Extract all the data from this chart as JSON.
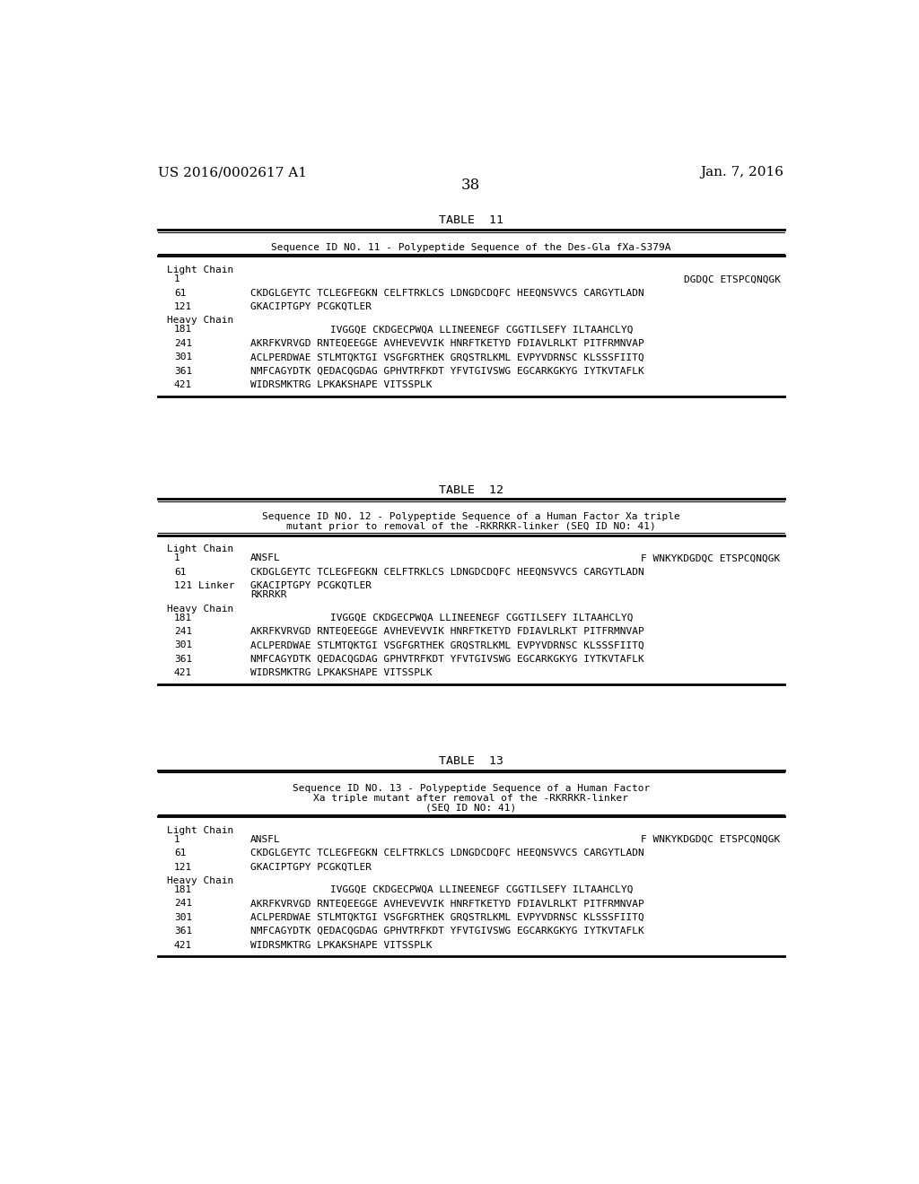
{
  "bg_color": "#ffffff",
  "text_color": "#000000",
  "page_header_left": "US 2016/0002617 A1",
  "page_header_right": "Jan. 7, 2016",
  "page_number": "38",
  "font_size_header": 11,
  "font_size_body": 8.5,
  "font_size_title": 9,
  "font_size_page": 11,
  "tables": [
    {
      "title": "TABLE  11",
      "subtitle_lines": [
        "Sequence ID NO. 11 - Polypeptide Sequence of the Des-Gla fXa-S379A"
      ],
      "rows": [
        {
          "type": "section",
          "text": "Light Chain"
        },
        {
          "type": "seq",
          "num": "1",
          "indent": "far_right",
          "seq": "DGDQC ETSPCQNQGK"
        },
        {
          "type": "seq",
          "num": "61",
          "indent": "near",
          "seq": "CKDGLGEYTC TCLEGFEGKN CELFTRKLCS LDNGDCDQFC HEEQNSVVCS CARGYTLADN"
        },
        {
          "type": "seq",
          "num": "121",
          "indent": "near",
          "seq": "GKACIPTGPY PCGKQTLER"
        },
        {
          "type": "section",
          "text": "Heavy Chain"
        },
        {
          "type": "seq",
          "num": "181",
          "indent": "mid",
          "seq": "IVGGQE CKDGECPWQA LLINEENEGF CGGTILSEFY ILTAAHCLYQ"
        },
        {
          "type": "seq",
          "num": "241",
          "indent": "near",
          "seq": "AKRFKVRVGD RNTEQEEGGE AVHEVEVVIK HNRFTKETYD FDIAVLRLKT PITFRMNVAP"
        },
        {
          "type": "seq",
          "num": "301",
          "indent": "near",
          "seq": "ACLPERDWAE STLMTQKTGI VSGFGRTHEK GRQSTRLKML EVPYVDRNSC KLSSSFIITQ"
        },
        {
          "type": "seq",
          "num": "361",
          "indent": "near",
          "seq": "NMFCAGYDTK QEDACQGDAG GPHVTRFKDT YFVTGIVSWG EGCARKGKYG IYTKVTAFLK"
        },
        {
          "type": "seq",
          "num": "421",
          "indent": "near",
          "seq": "WIDRSMKTRG LPKAKSHAPE VITSSPLK"
        }
      ]
    },
    {
      "title": "TABLE  12",
      "subtitle_lines": [
        "Sequence ID NO. 12 - Polypeptide Sequence of a Human Factor Xa triple",
        "mutant prior to removal of the -RKRRKR-linker (SEQ ID NO: 41)"
      ],
      "rows": [
        {
          "type": "section",
          "text": "Light Chain"
        },
        {
          "type": "seq_split",
          "num": "1",
          "seq_left": "ANSFL",
          "seq_right": "F WNKYKDGDQC ETSPCQNQGK"
        },
        {
          "type": "seq",
          "num": "61",
          "indent": "near",
          "seq": "CKDGLGEYTC TCLEGFEGKN CELFTRKLCS LDNGDCDQFC HEEQNSVVCS CARGYTLADN"
        },
        {
          "type": "seq_linker",
          "num": "121 Linker",
          "seq_line1": "GKACIPTGPY PCGKQTLER",
          "seq_line2": "RKRRKR"
        },
        {
          "type": "section",
          "text": "Heavy Chain"
        },
        {
          "type": "seq",
          "num": "181",
          "indent": "mid",
          "seq": "IVGGQE CKDGECPWQA LLINEENEGF CGGTILSEFY ILTAAHCLYQ"
        },
        {
          "type": "seq",
          "num": "241",
          "indent": "near",
          "seq": "AKRFKVRVGD RNTEQEEGGE AVHEVEVVIK HNRFTKETYD FDIAVLRLKT PITFRMNVAP"
        },
        {
          "type": "seq",
          "num": "301",
          "indent": "near",
          "seq": "ACLPERDWAE STLMTQKTGI VSGFGRTHEK GRQSTRLKML EVPYVDRNSC KLSSSFIITQ"
        },
        {
          "type": "seq",
          "num": "361",
          "indent": "near",
          "seq": "NMFCAGYDTK QEDACQGDAG GPHVTRFKDT YFVTGIVSWG EGCARKGKYG IYTKVTAFLK"
        },
        {
          "type": "seq",
          "num": "421",
          "indent": "near",
          "seq": "WIDRSMKTRG LPKAKSHAPE VITSSPLK"
        }
      ]
    },
    {
      "title": "TABLE  13",
      "subtitle_lines": [
        "Sequence ID NO. 13 - Polypeptide Sequence of a Human Factor",
        "Xa triple mutant after removal of the -RKRRKR-linker",
        "(SEQ ID NO: 41)"
      ],
      "rows": [
        {
          "type": "section",
          "text": "Light Chain"
        },
        {
          "type": "seq_split",
          "num": "1",
          "seq_left": "ANSFL",
          "seq_right": "F WNKYKDGDQC ETSPCQNQGK"
        },
        {
          "type": "seq",
          "num": "61",
          "indent": "near",
          "seq": "CKDGLGEYTC TCLEGFEGKN CELFTRKLCS LDNGDCDQFC HEEQNSVVCS CARGYTLADN"
        },
        {
          "type": "seq",
          "num": "121",
          "indent": "near",
          "seq": "GKACIPTGPY PCGKQTLER"
        },
        {
          "type": "section",
          "text": "Heavy Chain"
        },
        {
          "type": "seq",
          "num": "181",
          "indent": "mid",
          "seq": "IVGGQE CKDGECPWQA LLINEENEGF CGGTILSEFY ILTAAHCLYQ"
        },
        {
          "type": "seq",
          "num": "241",
          "indent": "near",
          "seq": "AKRFKVRVGD RNTEQEEGGE AVHEVEVVIK HNRFTKETYD FDIAVLRLKT PITFRMNVAP"
        },
        {
          "type": "seq",
          "num": "301",
          "indent": "near",
          "seq": "ACLPERDWAE STLMTQKTGI VSGFGRTHEK GRQSTRLKML EVPYVDRNSC KLSSSFIITQ"
        },
        {
          "type": "seq",
          "num": "361",
          "indent": "near",
          "seq": "NMFCAGYDTK QEDACQGDAG GPHVTRFKDT YFVTGIVSWG EGCARKGKYG IYTKVTAFLK"
        },
        {
          "type": "seq",
          "num": "421",
          "indent": "near",
          "seq": "WIDRSMKTRG LPKAKSHAPE VITSSPLK"
        }
      ]
    }
  ]
}
